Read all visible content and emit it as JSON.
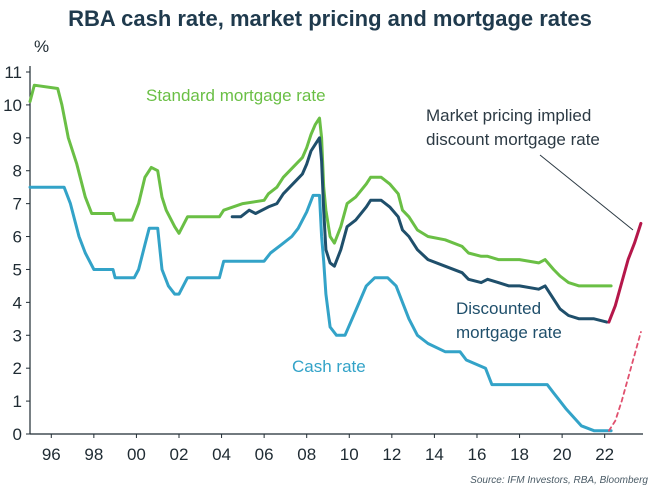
{
  "chart_data": {
    "type": "line",
    "title": "RBA cash rate, market pricing and mortgage rates",
    "ylabel": "%",
    "xlim": [
      1995,
      2023.8
    ],
    "ylim": [
      0,
      11
    ],
    "x_ticks": [
      {
        "value": 1996,
        "label": "96"
      },
      {
        "value": 1998,
        "label": "98"
      },
      {
        "value": 2000,
        "label": "00"
      },
      {
        "value": 2002,
        "label": "02"
      },
      {
        "value": 2004,
        "label": "04"
      },
      {
        "value": 2006,
        "label": "06"
      },
      {
        "value": 2008,
        "label": "08"
      },
      {
        "value": 2010,
        "label": "10"
      },
      {
        "value": 2012,
        "label": "12"
      },
      {
        "value": 2014,
        "label": "14"
      },
      {
        "value": 2016,
        "label": "16"
      },
      {
        "value": 2018,
        "label": "18"
      },
      {
        "value": 2020,
        "label": "20"
      },
      {
        "value": 2022,
        "label": "22"
      }
    ],
    "y_ticks": [
      0,
      1,
      2,
      3,
      4,
      5,
      6,
      7,
      8,
      9,
      10,
      11
    ],
    "grid": false,
    "series": [
      {
        "name": "Standard mortgage rate",
        "color": "#6abf45",
        "x": [
          1995.0,
          1995.2,
          1996.3,
          1996.5,
          1996.8,
          1997.2,
          1997.6,
          1997.9,
          1998.9,
          1999.0,
          1999.8,
          2000.1,
          2000.4,
          2000.7,
          2001.0,
          2001.2,
          2001.4,
          2001.8,
          2002.0,
          2002.4,
          2002.7,
          2003.1,
          2003.9,
          2004.1,
          2005.0,
          2006.0,
          2006.2,
          2006.6,
          2006.9,
          2007.2,
          2007.5,
          2007.8,
          2008.0,
          2008.2,
          2008.4,
          2008.6,
          2008.7,
          2008.8,
          2008.9,
          2009.1,
          2009.3,
          2009.6,
          2009.9,
          2010.3,
          2010.8,
          2011.0,
          2011.5,
          2011.9,
          2012.3,
          2012.5,
          2012.8,
          2013.2,
          2013.7,
          2014.5,
          2015.3,
          2015.6,
          2016.2,
          2016.5,
          2017.0,
          2017.5,
          2018.0,
          2018.9,
          2019.2,
          2019.6,
          2019.9,
          2020.3,
          2020.8,
          2021.5,
          2022.3
        ],
        "y": [
          10.1,
          10.6,
          10.5,
          10.0,
          9.0,
          8.2,
          7.2,
          6.7,
          6.7,
          6.5,
          6.5,
          7.0,
          7.8,
          8.1,
          8.0,
          7.2,
          6.8,
          6.3,
          6.1,
          6.6,
          6.6,
          6.6,
          6.6,
          6.8,
          7.0,
          7.1,
          7.3,
          7.5,
          7.8,
          8.0,
          8.2,
          8.4,
          8.7,
          9.1,
          9.4,
          9.6,
          9.0,
          7.5,
          6.8,
          6.0,
          5.8,
          6.3,
          7.0,
          7.2,
          7.6,
          7.8,
          7.8,
          7.6,
          7.3,
          6.8,
          6.6,
          6.2,
          6.0,
          5.9,
          5.7,
          5.5,
          5.4,
          5.4,
          5.3,
          5.3,
          5.3,
          5.2,
          5.3,
          5.0,
          4.8,
          4.6,
          4.5,
          4.5,
          4.5
        ]
      },
      {
        "name": "Discounted mortgage rate",
        "color": "#1f4f6b",
        "x": [
          2004.5,
          2004.9,
          2005.3,
          2005.6,
          2006.2,
          2006.6,
          2006.9,
          2007.2,
          2007.5,
          2007.8,
          2008.0,
          2008.2,
          2008.4,
          2008.6,
          2008.7,
          2008.8,
          2008.9,
          2009.1,
          2009.3,
          2009.6,
          2009.9,
          2010.3,
          2010.8,
          2011.0,
          2011.5,
          2011.9,
          2012.3,
          2012.5,
          2012.8,
          2013.2,
          2013.7,
          2014.5,
          2015.3,
          2015.6,
          2016.2,
          2016.5,
          2017.0,
          2017.5,
          2018.0,
          2018.9,
          2019.2,
          2019.6,
          2019.9,
          2020.3,
          2020.8,
          2021.5,
          2022.1
        ],
        "y": [
          6.6,
          6.6,
          6.8,
          6.7,
          6.9,
          7.0,
          7.3,
          7.5,
          7.7,
          7.9,
          8.2,
          8.6,
          8.8,
          9.0,
          8.3,
          6.8,
          5.6,
          5.2,
          5.1,
          5.6,
          6.3,
          6.5,
          6.9,
          7.1,
          7.1,
          6.9,
          6.6,
          6.2,
          6.0,
          5.6,
          5.3,
          5.1,
          4.9,
          4.7,
          4.6,
          4.7,
          4.6,
          4.5,
          4.5,
          4.4,
          4.5,
          4.1,
          3.8,
          3.6,
          3.5,
          3.5,
          3.4
        ]
      },
      {
        "name": "Cash rate",
        "color": "#33a3c8",
        "x": [
          1995.0,
          1996.6,
          1996.9,
          1997.3,
          1997.6,
          1998.0,
          1998.9,
          1999.0,
          1999.9,
          2000.1,
          2000.4,
          2000.6,
          2001.0,
          2001.2,
          2001.5,
          2001.8,
          2002.0,
          2002.4,
          2002.8,
          2003.9,
          2004.1,
          2005.0,
          2006.0,
          2006.3,
          2006.8,
          2007.3,
          2007.6,
          2008.0,
          2008.3,
          2008.6,
          2008.7,
          2008.8,
          2008.9,
          2009.1,
          2009.4,
          2009.8,
          2010.3,
          2010.8,
          2011.2,
          2011.8,
          2012.2,
          2012.5,
          2012.8,
          2013.2,
          2013.7,
          2014.5,
          2015.2,
          2015.5,
          2016.4,
          2016.7,
          2017.5,
          2018.5,
          2019.3,
          2019.6,
          2019.9,
          2020.2,
          2020.9,
          2021.5,
          2022.3
        ],
        "y": [
          7.5,
          7.5,
          7.0,
          6.0,
          5.5,
          5.0,
          5.0,
          4.75,
          4.75,
          5.0,
          5.75,
          6.25,
          6.25,
          5.0,
          4.5,
          4.25,
          4.25,
          4.75,
          4.75,
          4.75,
          5.25,
          5.25,
          5.25,
          5.5,
          5.75,
          6.0,
          6.25,
          6.75,
          7.25,
          7.25,
          6.0,
          5.25,
          4.25,
          3.25,
          3.0,
          3.0,
          3.75,
          4.5,
          4.75,
          4.75,
          4.5,
          4.0,
          3.5,
          3.0,
          2.75,
          2.5,
          2.5,
          2.25,
          2.0,
          1.5,
          1.5,
          1.5,
          1.5,
          1.25,
          1.0,
          0.75,
          0.25,
          0.1,
          0.1
        ]
      },
      {
        "name": "Market pricing implied discount mortgage rate",
        "color": "#b5174a",
        "x": [
          2022.2,
          2022.5,
          2022.8,
          2023.1,
          2023.4,
          2023.7
        ],
        "y": [
          3.4,
          3.9,
          4.6,
          5.3,
          5.8,
          6.4
        ]
      },
      {
        "name": "Market pricing (cash rate)",
        "color": "#e0506e",
        "dashed": true,
        "x": [
          2022.2,
          2022.5,
          2022.8,
          2023.1,
          2023.4,
          2023.7
        ],
        "y": [
          0.1,
          0.4,
          1.0,
          1.7,
          2.4,
          3.1
        ]
      }
    ],
    "annotations": [
      {
        "id": "standard",
        "text": "Standard mortgage rate",
        "color": "#6abf45"
      },
      {
        "id": "market",
        "text": "Market pricing implied discount mortgage rate",
        "color": "#2c3a44"
      },
      {
        "id": "discounted",
        "text": "Discounted mortgage rate",
        "color": "#1f4f6b"
      },
      {
        "id": "cash",
        "text": "Cash rate",
        "color": "#33a3c8"
      }
    ],
    "source": "Source: IFM Investors, RBA, Bloomberg"
  },
  "labels": {
    "market_line1": "Market pricing implied",
    "market_line2": "discount mortgage rate",
    "discounted_line1": "Discounted",
    "discounted_line2": "mortgage rate"
  }
}
